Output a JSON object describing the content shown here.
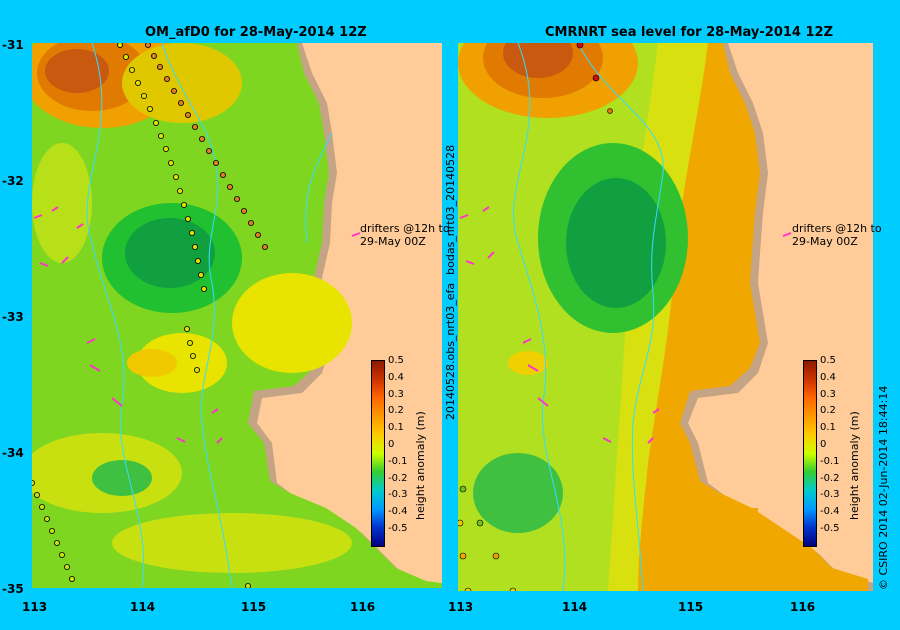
{
  "left_title": "OM_afD0 for 28-May-2014 12Z",
  "right_title": "CMRNRT sea level  for 28-May-2014 12Z",
  "lat_ticks": [
    "-31",
    "-32",
    "-33",
    "-34",
    "-35"
  ],
  "lon_ticks": [
    "113",
    "114",
    "115",
    "116"
  ],
  "annotation_line1": "drifters @12h to",
  "annotation_line2": "29-May 00Z",
  "right_vertical_label": "20140528.obs_nrt03_efa",
  "right_vertical_label_top": "bodas_nrt03_20140528",
  "colorbar": {
    "label": "height anomaly (m)",
    "ticks": [
      "0.5",
      "0.4",
      "0.3",
      "0.2",
      "0.1",
      "0",
      "-0.1",
      "-0.2",
      "-0.3",
      "-0.4",
      "-0.5"
    ],
    "range": [
      -0.5,
      0.5
    ]
  },
  "credit": "© CSIRO 2014    02-Jun-2014 18:44:14",
  "colors": {
    "background": "#00ccff",
    "land": "#ffcc99",
    "shelf_mask": "#c4a484",
    "drifter_arrow": "#ff33cc",
    "track_outline": "#000000"
  }
}
